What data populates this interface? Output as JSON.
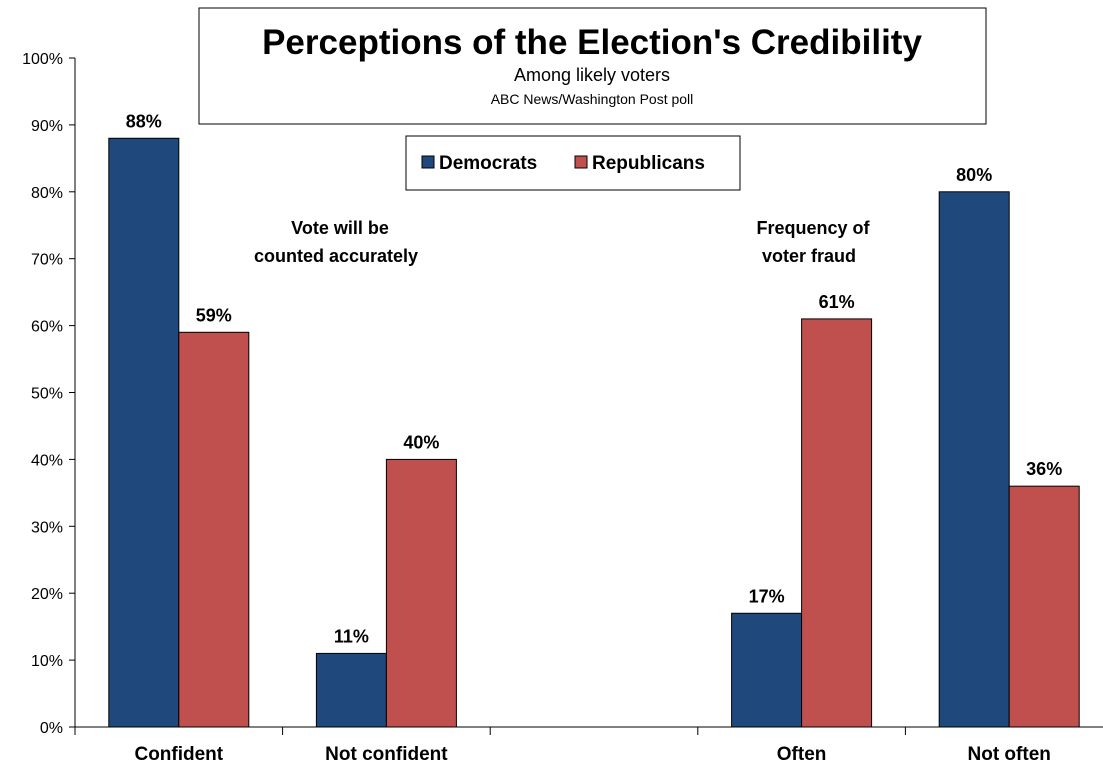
{
  "chart_data": {
    "type": "bar",
    "title": "Perceptions of the Election's Credibility",
    "subtitle": "Among likely voters",
    "source": "ABC News/Washington  Post poll",
    "categories": [
      "Confident",
      "Not confident",
      "",
      "Often",
      "Not often"
    ],
    "series": [
      {
        "name": "Democrats",
        "color": "#1f497d",
        "values": [
          88,
          11,
          null,
          17,
          80
        ]
      },
      {
        "name": "Republicans",
        "color": "#c0504d",
        "values": [
          59,
          40,
          null,
          61,
          36
        ]
      }
    ],
    "data_labels": [
      [
        "88%",
        "11%",
        "",
        "17%",
        "80%"
      ],
      [
        "59%",
        "40%",
        "",
        "61%",
        "36%"
      ]
    ],
    "annotations": [
      {
        "lines": [
          "Vote will be",
          "counted accurately"
        ]
      },
      {
        "lines": [
          "Frequency of",
          "voter fraud"
        ]
      }
    ],
    "ylim": [
      0,
      100
    ],
    "yticks": [
      0,
      10,
      20,
      30,
      40,
      50,
      60,
      70,
      80,
      90,
      100
    ],
    "ytick_labels": [
      "0%",
      "10%",
      "20%",
      "30%",
      "40%",
      "50%",
      "60%",
      "70%",
      "80%",
      "90%",
      "100%"
    ],
    "xlabel": "",
    "ylabel": "",
    "grid": false,
    "legend": "top-center"
  }
}
